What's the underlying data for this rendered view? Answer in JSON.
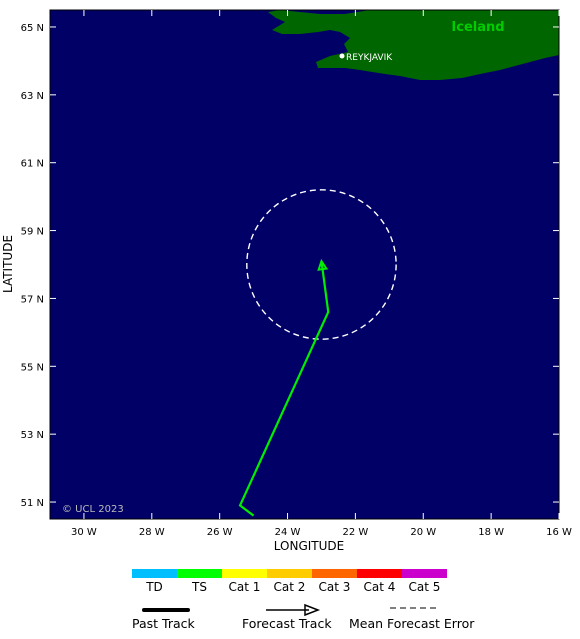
{
  "map": {
    "region_label": "Iceland",
    "city_label": "REYKJAVIK",
    "copyright": "© UCL 2023",
    "xlabel": "LONGITUDE",
    "ylabel": "LATITUDE",
    "lon_ticks": [
      "30 W",
      "28 W",
      "26 W",
      "24 W",
      "22 W",
      "20 W",
      "18 W",
      "16 W"
    ],
    "lat_ticks": [
      "51 N",
      "53 N",
      "55 N",
      "57 N",
      "59 N",
      "61 N",
      "63 N",
      "65 N"
    ],
    "ocean_color": "#000066",
    "land_color": "#006600",
    "track_color": "#00ee00",
    "track": [
      {
        "lon": -25.0,
        "lat": 50.6
      },
      {
        "lon": -25.4,
        "lat": 50.9
      },
      {
        "lon": -22.8,
        "lat": 56.6
      },
      {
        "lon": -23.0,
        "lat": 58.1
      }
    ],
    "error_circle": {
      "lon": -23.0,
      "lat": 58.0,
      "radius_deg_lon": 2.2
    }
  },
  "scale": {
    "items": [
      {
        "label": "TD",
        "color": "#00bfff"
      },
      {
        "label": "TS",
        "color": "#00ff00"
      },
      {
        "label": "Cat 1",
        "color": "#ffff00"
      },
      {
        "label": "Cat 2",
        "color": "#ffcc00"
      },
      {
        "label": "Cat 3",
        "color": "#ff6600"
      },
      {
        "label": "Cat 4",
        "color": "#ff0000"
      },
      {
        "label": "Cat 5",
        "color": "#cc00cc"
      }
    ]
  },
  "legend": {
    "past_track": "Past Track",
    "forecast_track": "Forecast Track",
    "mean_error": "Mean Forecast Error"
  }
}
